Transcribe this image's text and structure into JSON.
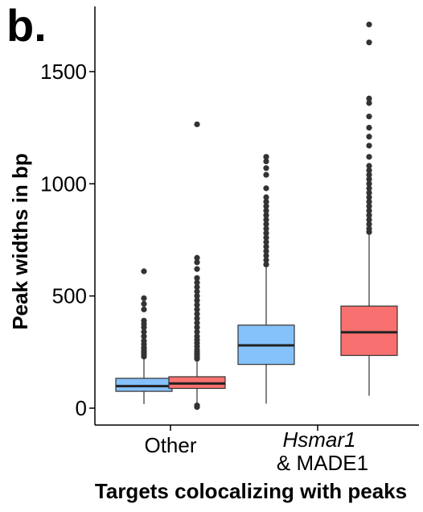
{
  "panel_label": "b.",
  "chart_data": {
    "type": "box",
    "ylabel": "Peak widths in bp",
    "xlabel": "Targets colocalizing with peaks",
    "ylim": [
      -30,
      1750
    ],
    "yticks": [
      0,
      500,
      1000,
      1500
    ],
    "categories": [
      {
        "label": "Other",
        "label_italic": "",
        "label_line2": ""
      },
      {
        "label": "",
        "label_italic": "Hsmar1",
        "label_line2": "& MADE1"
      }
    ],
    "colors": {
      "blue": "#85c1fb",
      "red": "#f8706f"
    },
    "boxes": [
      {
        "category": 0,
        "color": "blue",
        "whisker_low": 18,
        "q1": 75,
        "median": 98,
        "q3": 133,
        "whisker_high": 220,
        "outliers": [
          230,
          240,
          250,
          260,
          270,
          285,
          300,
          320,
          340,
          360,
          375,
          390,
          440,
          465,
          490,
          610
        ]
      },
      {
        "category": 0,
        "color": "red",
        "whisker_low": 20,
        "q1": 88,
        "median": 110,
        "q3": 140,
        "whisker_high": 210,
        "outliers": [
          5,
          12,
          220,
          230,
          240,
          250,
          260,
          275,
          290,
          305,
          320,
          340,
          360,
          380,
          400,
          420,
          440,
          460,
          480,
          500,
          520,
          540,
          560,
          580,
          620,
          650,
          670,
          1265
        ]
      },
      {
        "category": 1,
        "color": "blue",
        "whisker_low": 20,
        "q1": 195,
        "median": 280,
        "q3": 370,
        "whisker_high": 630,
        "outliers": [
          640,
          660,
          680,
          700,
          720,
          740,
          760,
          780,
          800,
          820,
          840,
          860,
          880,
          900,
          920,
          940,
          980,
          1040,
          1070,
          1100,
          1120
        ]
      },
      {
        "category": 1,
        "color": "red",
        "whisker_low": 55,
        "q1": 235,
        "median": 338,
        "q3": 455,
        "whisker_high": 775,
        "outliers": [
          785,
          800,
          820,
          840,
          860,
          880,
          900,
          920,
          940,
          960,
          980,
          1000,
          1020,
          1040,
          1060,
          1080,
          1120,
          1170,
          1210,
          1250,
          1300,
          1360,
          1380,
          1630,
          1710
        ]
      }
    ]
  }
}
